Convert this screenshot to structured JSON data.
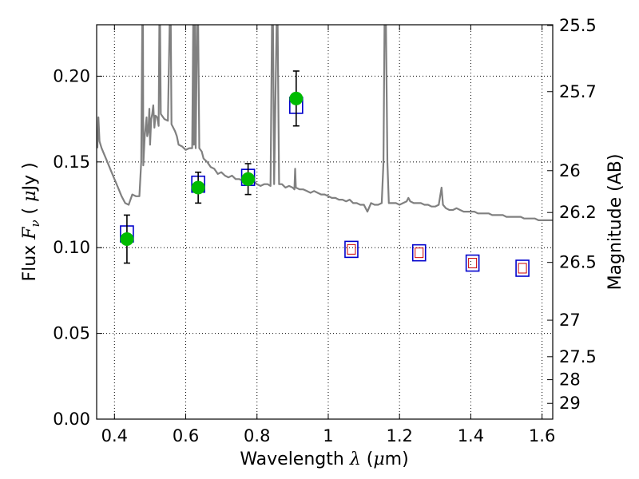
{
  "chart_data": {
    "type": "scatter",
    "xlabel": "Wavelength  λ (μm)",
    "ylabel": "Flux  F_ν  ( μJy )",
    "ylabel_parts": [
      "Flux ",
      "F",
      "ν",
      "  ( ",
      "μ",
      "Jy )"
    ],
    "xlabel_parts": [
      "Wavelength  ",
      "λ",
      " (",
      "μ",
      "m)"
    ],
    "right_ylabel": "Magnitude (AB)",
    "xlim": [
      0.35,
      1.63
    ],
    "ylim": [
      0.0,
      0.23
    ],
    "grid": true,
    "x_ticks": [
      {
        "value": 0.4,
        "label": "0.4"
      },
      {
        "value": 0.6,
        "label": "0.6"
      },
      {
        "value": 0.8,
        "label": "0.8"
      },
      {
        "value": 1.0,
        "label": "1"
      },
      {
        "value": 1.2,
        "label": "1.2"
      },
      {
        "value": 1.4,
        "label": "1.4"
      },
      {
        "value": 1.6,
        "label": "1.6"
      }
    ],
    "y_ticks": [
      {
        "value": 0.0,
        "label": "0.00"
      },
      {
        "value": 0.05,
        "label": "0.05"
      },
      {
        "value": 0.1,
        "label": "0.10"
      },
      {
        "value": 0.15,
        "label": "0.15"
      },
      {
        "value": 0.2,
        "label": "0.20"
      }
    ],
    "right_ticks": [
      {
        "label": "25.5",
        "flux": 0.2296
      },
      {
        "label": "25.7",
        "flux": 0.191
      },
      {
        "label": "26",
        "flux": 0.1449
      },
      {
        "label": "26.2",
        "flux": 0.1205
      },
      {
        "label": "26.5",
        "flux": 0.0914
      },
      {
        "label": "27",
        "flux": 0.0577
      },
      {
        "label": "27.5",
        "flux": 0.0364
      },
      {
        "label": "28",
        "flux": 0.023
      },
      {
        "label": "29",
        "flux": 0.0092
      }
    ],
    "observed": [
      {
        "x": 0.435,
        "y": 0.105,
        "err": 0.014
      },
      {
        "x": 0.635,
        "y": 0.135,
        "err": 0.009
      },
      {
        "x": 0.775,
        "y": 0.14,
        "err": 0.009
      },
      {
        "x": 0.91,
        "y": 0.187,
        "err": 0.016
      }
    ],
    "model_bands": [
      {
        "x": 0.435,
        "y": 0.108
      },
      {
        "x": 0.635,
        "y": 0.137
      },
      {
        "x": 0.775,
        "y": 0.141
      },
      {
        "x": 0.91,
        "y": 0.183
      }
    ],
    "nir_model": [
      {
        "x": 1.065,
        "y": 0.099
      },
      {
        "x": 1.255,
        "y": 0.097
      },
      {
        "x": 1.405,
        "y": 0.091
      },
      {
        "x": 1.545,
        "y": 0.088
      }
    ],
    "spectrum": [
      [
        0.352,
        0.158
      ],
      [
        0.355,
        0.176
      ],
      [
        0.358,
        0.162
      ],
      [
        0.364,
        0.158
      ],
      [
        0.372,
        0.154
      ],
      [
        0.38,
        0.15
      ],
      [
        0.39,
        0.145
      ],
      [
        0.4,
        0.14
      ],
      [
        0.41,
        0.135
      ],
      [
        0.42,
        0.13
      ],
      [
        0.43,
        0.126
      ],
      [
        0.44,
        0.125
      ],
      [
        0.45,
        0.131
      ],
      [
        0.46,
        0.13
      ],
      [
        0.47,
        0.13
      ],
      [
        0.475,
        0.15
      ],
      [
        0.478,
        0.23
      ],
      [
        0.48,
        0.23
      ],
      [
        0.481,
        0.148
      ],
      [
        0.485,
        0.165
      ],
      [
        0.49,
        0.176
      ],
      [
        0.492,
        0.165
      ],
      [
        0.495,
        0.168
      ],
      [
        0.498,
        0.181
      ],
      [
        0.5,
        0.16
      ],
      [
        0.503,
        0.175
      ],
      [
        0.506,
        0.178
      ],
      [
        0.509,
        0.183
      ],
      [
        0.512,
        0.17
      ],
      [
        0.515,
        0.177
      ],
      [
        0.52,
        0.176
      ],
      [
        0.524,
        0.171
      ],
      [
        0.526,
        0.23
      ],
      [
        0.528,
        0.23
      ],
      [
        0.53,
        0.178
      ],
      [
        0.54,
        0.175
      ],
      [
        0.55,
        0.174
      ],
      [
        0.555,
        0.23
      ],
      [
        0.558,
        0.23
      ],
      [
        0.56,
        0.172
      ],
      [
        0.57,
        0.168
      ],
      [
        0.575,
        0.165
      ],
      [
        0.58,
        0.16
      ],
      [
        0.59,
        0.159
      ],
      [
        0.6,
        0.157
      ],
      [
        0.61,
        0.158
      ],
      [
        0.618,
        0.158
      ],
      [
        0.621,
        0.23
      ],
      [
        0.623,
        0.16
      ],
      [
        0.626,
        0.23
      ],
      [
        0.628,
        0.158
      ],
      [
        0.632,
        0.23
      ],
      [
        0.635,
        0.23
      ],
      [
        0.638,
        0.158
      ],
      [
        0.645,
        0.156
      ],
      [
        0.65,
        0.152
      ],
      [
        0.66,
        0.15
      ],
      [
        0.67,
        0.147
      ],
      [
        0.68,
        0.146
      ],
      [
        0.69,
        0.143
      ],
      [
        0.7,
        0.144
      ],
      [
        0.71,
        0.142
      ],
      [
        0.72,
        0.141
      ],
      [
        0.73,
        0.142
      ],
      [
        0.74,
        0.14
      ],
      [
        0.75,
        0.14
      ],
      [
        0.76,
        0.139
      ],
      [
        0.77,
        0.139
      ],
      [
        0.78,
        0.138
      ],
      [
        0.79,
        0.139
      ],
      [
        0.8,
        0.137
      ],
      [
        0.81,
        0.136
      ],
      [
        0.82,
        0.137
      ],
      [
        0.83,
        0.137
      ],
      [
        0.838,
        0.136
      ],
      [
        0.842,
        0.23
      ],
      [
        0.845,
        0.23
      ],
      [
        0.848,
        0.137
      ],
      [
        0.855,
        0.23
      ],
      [
        0.858,
        0.23
      ],
      [
        0.862,
        0.137
      ],
      [
        0.87,
        0.137
      ],
      [
        0.88,
        0.135
      ],
      [
        0.89,
        0.136
      ],
      [
        0.9,
        0.135
      ],
      [
        0.905,
        0.134
      ],
      [
        0.907,
        0.146
      ],
      [
        0.909,
        0.135
      ],
      [
        0.92,
        0.134
      ],
      [
        0.93,
        0.134
      ],
      [
        0.94,
        0.133
      ],
      [
        0.95,
        0.132
      ],
      [
        0.96,
        0.133
      ],
      [
        0.97,
        0.132
      ],
      [
        0.98,
        0.131
      ],
      [
        0.99,
        0.131
      ],
      [
        1.0,
        0.13
      ],
      [
        1.01,
        0.129
      ],
      [
        1.02,
        0.129
      ],
      [
        1.03,
        0.128
      ],
      [
        1.04,
        0.128
      ],
      [
        1.05,
        0.127
      ],
      [
        1.06,
        0.128
      ],
      [
        1.07,
        0.126
      ],
      [
        1.08,
        0.126
      ],
      [
        1.09,
        0.125
      ],
      [
        1.1,
        0.125
      ],
      [
        1.11,
        0.121
      ],
      [
        1.12,
        0.126
      ],
      [
        1.13,
        0.125
      ],
      [
        1.14,
        0.125
      ],
      [
        1.15,
        0.126
      ],
      [
        1.155,
        0.15
      ],
      [
        1.158,
        0.23
      ],
      [
        1.162,
        0.23
      ],
      [
        1.166,
        0.15
      ],
      [
        1.17,
        0.126
      ],
      [
        1.18,
        0.126
      ],
      [
        1.19,
        0.126
      ],
      [
        1.2,
        0.125
      ],
      [
        1.21,
        0.126
      ],
      [
        1.22,
        0.127
      ],
      [
        1.225,
        0.129
      ],
      [
        1.23,
        0.127
      ],
      [
        1.24,
        0.126
      ],
      [
        1.25,
        0.126
      ],
      [
        1.26,
        0.126
      ],
      [
        1.27,
        0.125
      ],
      [
        1.28,
        0.125
      ],
      [
        1.29,
        0.124
      ],
      [
        1.3,
        0.124
      ],
      [
        1.31,
        0.125
      ],
      [
        1.318,
        0.135
      ],
      [
        1.322,
        0.125
      ],
      [
        1.33,
        0.123
      ],
      [
        1.34,
        0.122
      ],
      [
        1.35,
        0.122
      ],
      [
        1.36,
        0.123
      ],
      [
        1.37,
        0.122
      ],
      [
        1.38,
        0.121
      ],
      [
        1.39,
        0.121
      ],
      [
        1.4,
        0.121
      ],
      [
        1.41,
        0.121
      ],
      [
        1.42,
        0.12
      ],
      [
        1.43,
        0.12
      ],
      [
        1.44,
        0.12
      ],
      [
        1.45,
        0.12
      ],
      [
        1.46,
        0.119
      ],
      [
        1.47,
        0.119
      ],
      [
        1.48,
        0.119
      ],
      [
        1.49,
        0.119
      ],
      [
        1.5,
        0.118
      ],
      [
        1.51,
        0.118
      ],
      [
        1.52,
        0.118
      ],
      [
        1.53,
        0.118
      ],
      [
        1.54,
        0.118
      ],
      [
        1.55,
        0.117
      ],
      [
        1.56,
        0.117
      ],
      [
        1.57,
        0.117
      ],
      [
        1.58,
        0.117
      ],
      [
        1.59,
        0.116
      ],
      [
        1.6,
        0.116
      ],
      [
        1.61,
        0.116
      ],
      [
        1.62,
        0.116
      ],
      [
        1.63,
        0.116
      ]
    ],
    "colors": {
      "spectrum": "#808080",
      "observed": "#00bb00",
      "model_band": "#0000cc",
      "nir_inner": "#cc0000",
      "error_bar": "#000000",
      "grid": "#000000"
    }
  }
}
